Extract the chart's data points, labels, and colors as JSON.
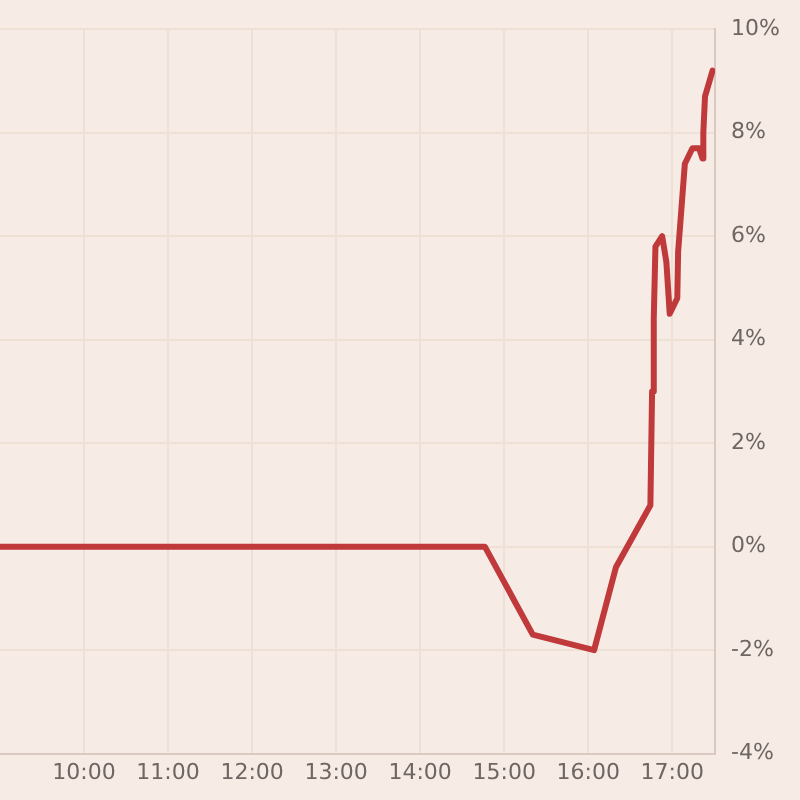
{
  "chart_data": {
    "type": "line",
    "x": [
      9.0,
      14.77,
      15.34,
      16.07,
      16.33,
      16.74,
      16.76,
      16.78,
      16.8,
      16.88,
      16.93,
      16.97,
      17.06,
      17.07,
      17.15,
      17.24,
      17.32,
      17.36,
      17.37,
      17.39,
      17.48
    ],
    "series": [
      {
        "color": "#c0393b",
        "values": [
          0,
          0,
          -1.7,
          -2.0,
          -0.4,
          0.8,
          3.0,
          4.4,
          5.8,
          6.0,
          5.5,
          4.5,
          4.8,
          5.7,
          7.4,
          7.7,
          7.7,
          7.5,
          8.0,
          8.7,
          9.2
        ]
      }
    ],
    "xlim": [
      9.0,
      17.51
    ],
    "xticks": [
      {
        "value": 10,
        "label": "10:00"
      },
      {
        "value": 11,
        "label": "11:00"
      },
      {
        "value": 12,
        "label": "12:00"
      },
      {
        "value": 13,
        "label": "13:00"
      },
      {
        "value": 14,
        "label": "14:00"
      },
      {
        "value": 15,
        "label": "15:00"
      },
      {
        "value": 16,
        "label": "16:00"
      },
      {
        "value": 17,
        "label": "17:00"
      }
    ],
    "ylim": [
      -4,
      10
    ],
    "yticks": [
      {
        "value": -4,
        "label": "-4%"
      },
      {
        "value": -2,
        "label": "-2%"
      },
      {
        "value": 0,
        "label": "0%"
      },
      {
        "value": 2,
        "label": "2%"
      },
      {
        "value": 4,
        "label": "4%"
      },
      {
        "value": 6,
        "label": "6%"
      },
      {
        "value": 8,
        "label": "8%"
      },
      {
        "value": 10,
        "label": "10%"
      }
    ],
    "grid": true,
    "legend": false,
    "marker": "none",
    "line_style": "solid"
  }
}
